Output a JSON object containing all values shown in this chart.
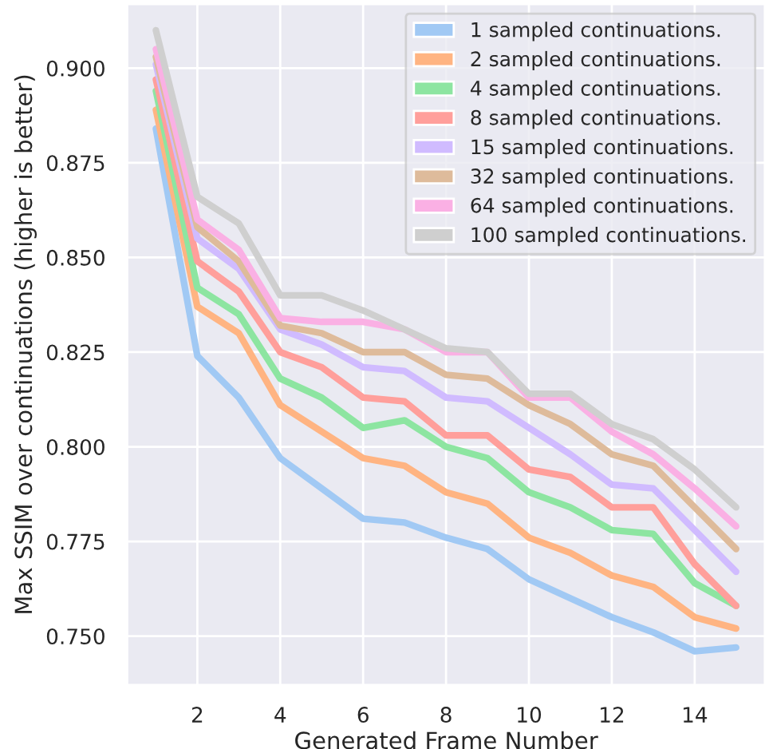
{
  "chart_data": {
    "type": "line",
    "xlabel": "Generated Frame Number",
    "ylabel": "Max SSIM over continuations (higher is better)",
    "x": [
      1,
      2,
      3,
      4,
      5,
      6,
      7,
      8,
      9,
      10,
      11,
      12,
      13,
      14,
      15
    ],
    "xlim": [
      0.3,
      15.7
    ],
    "ylim": [
      0.737,
      0.917
    ],
    "xticks": [
      2,
      4,
      6,
      8,
      10,
      12,
      14
    ],
    "yticks": [
      {
        "value": 0.75,
        "label": "0.750"
      },
      {
        "value": 0.775,
        "label": "0.775"
      },
      {
        "value": 0.8,
        "label": "0.800"
      },
      {
        "value": 0.825,
        "label": "0.825"
      },
      {
        "value": 0.85,
        "label": "0.850"
      },
      {
        "value": 0.875,
        "label": "0.875"
      },
      {
        "value": 0.9,
        "label": "0.900"
      }
    ],
    "grid": true,
    "legend": "top right",
    "marker": "none",
    "line_style": "solid",
    "series": [
      {
        "name": "1 sampled continuations.",
        "color": "#a1c9f4",
        "values": [
          0.884,
          0.824,
          0.813,
          0.797,
          0.789,
          0.781,
          0.78,
          0.776,
          0.773,
          0.765,
          0.76,
          0.755,
          0.751,
          0.746,
          0.747
        ]
      },
      {
        "name": "2 sampled continuations.",
        "color": "#ffb482",
        "values": [
          0.889,
          0.837,
          0.83,
          0.811,
          0.804,
          0.797,
          0.795,
          0.788,
          0.785,
          0.776,
          0.772,
          0.766,
          0.763,
          0.755,
          0.752
        ]
      },
      {
        "name": "4 sampled continuations.",
        "color": "#8de5a1",
        "values": [
          0.894,
          0.842,
          0.835,
          0.818,
          0.813,
          0.805,
          0.807,
          0.8,
          0.797,
          0.788,
          0.784,
          0.778,
          0.777,
          0.764,
          0.758
        ]
      },
      {
        "name": "8 sampled continuations.",
        "color": "#ff9f9b",
        "values": [
          0.897,
          0.849,
          0.841,
          0.825,
          0.821,
          0.813,
          0.812,
          0.803,
          0.803,
          0.794,
          0.792,
          0.784,
          0.784,
          0.769,
          0.758
        ]
      },
      {
        "name": "15 sampled continuations.",
        "color": "#d0bbff",
        "values": [
          0.901,
          0.855,
          0.847,
          0.831,
          0.827,
          0.821,
          0.82,
          0.813,
          0.812,
          0.805,
          0.798,
          0.79,
          0.789,
          0.778,
          0.767
        ]
      },
      {
        "name": "32 sampled continuations.",
        "color": "#debb9b",
        "values": [
          0.903,
          0.858,
          0.849,
          0.832,
          0.83,
          0.825,
          0.825,
          0.819,
          0.818,
          0.811,
          0.806,
          0.798,
          0.795,
          0.784,
          0.773
        ]
      },
      {
        "name": "64 sampled continuations.",
        "color": "#fab0e4",
        "values": [
          0.905,
          0.86,
          0.852,
          0.834,
          0.833,
          0.833,
          0.831,
          0.825,
          0.825,
          0.813,
          0.813,
          0.804,
          0.798,
          0.789,
          0.779
        ]
      },
      {
        "name": "100 sampled continuations.",
        "color": "#cfcfcf",
        "values": [
          0.91,
          0.866,
          0.859,
          0.84,
          0.84,
          0.836,
          0.831,
          0.826,
          0.825,
          0.814,
          0.814,
          0.806,
          0.802,
          0.794,
          0.784
        ]
      }
    ]
  }
}
